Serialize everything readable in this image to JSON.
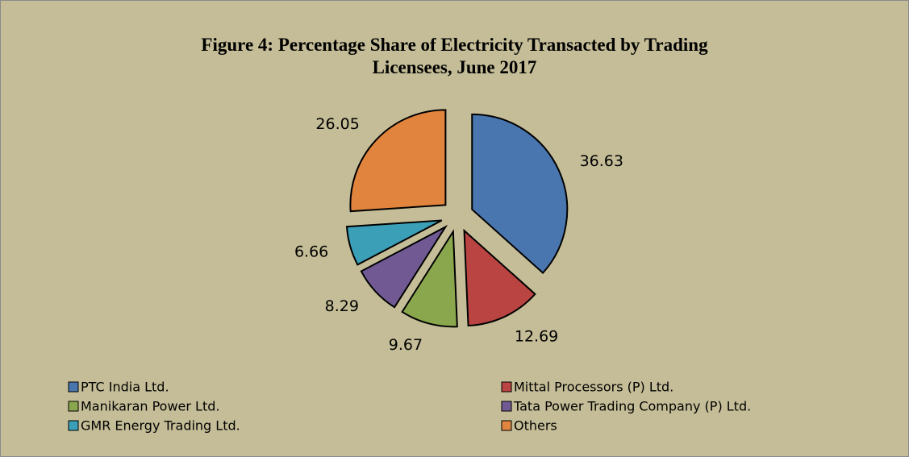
{
  "chart_data": {
    "type": "pie",
    "title": "Figure 4: Percentage Share of Electricity Transacted by Trading Licensees, June 2017",
    "categories": [
      "PTC India Ltd.",
      "Mittal Processors (P) Ltd.",
      "Manikaran Power Ltd.",
      "Tata Power Trading Company (P) Ltd.",
      "GMR Energy Trading Ltd.",
      "Others"
    ],
    "values": [
      36.63,
      12.69,
      9.67,
      8.29,
      6.66,
      26.05
    ],
    "colors": [
      "#4a76b0",
      "#b94441",
      "#8aa74d",
      "#715a93",
      "#3b9fb8",
      "#e0843e"
    ],
    "exploded": true,
    "legend": "bottom"
  }
}
